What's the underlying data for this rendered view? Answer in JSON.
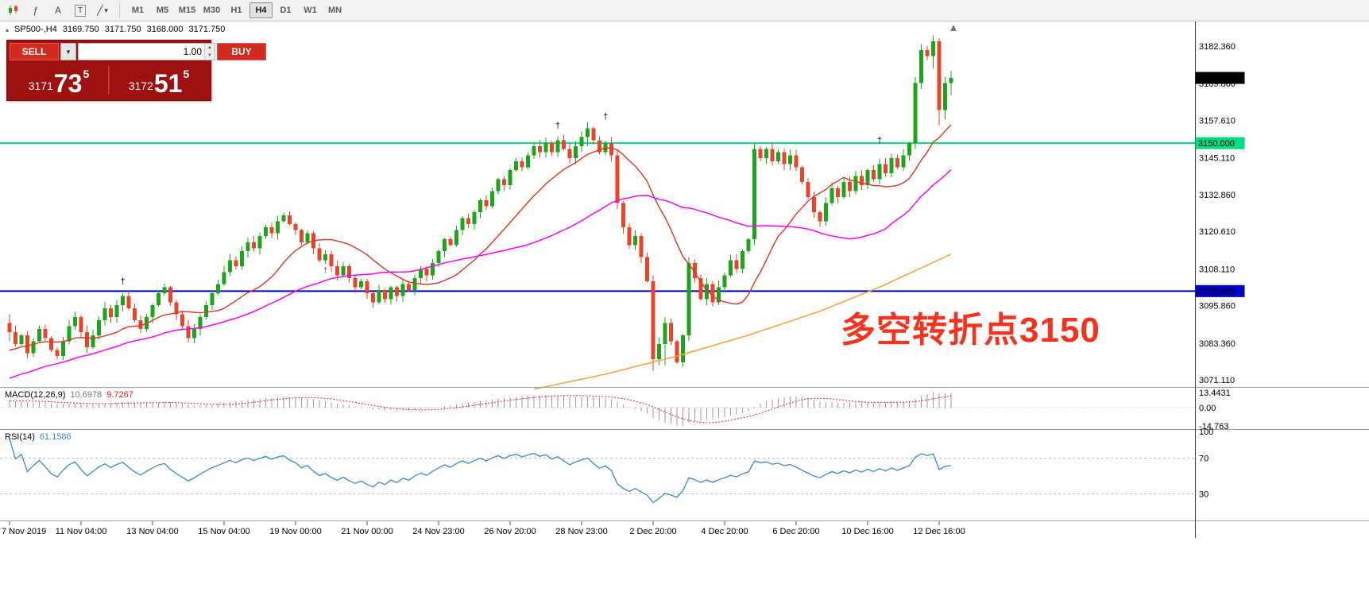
{
  "toolbar": {
    "icons": [
      {
        "name": "candlestick-chart-icon",
        "glyph": ""
      },
      {
        "name": "indicators-icon",
        "glyph": "ƒ"
      },
      {
        "name": "text-label-icon",
        "glyph": "A"
      },
      {
        "name": "text-box-icon",
        "glyph": "T"
      },
      {
        "name": "drawing-tools-icon",
        "glyph": "╱"
      },
      {
        "name": "dropdown-caret",
        "glyph": "▾"
      }
    ],
    "timeframes": [
      "M1",
      "M5",
      "M15",
      "M30",
      "H1",
      "H4",
      "D1",
      "W1",
      "MN"
    ],
    "active_timeframe": "H4"
  },
  "chart_header": {
    "icon": "▴",
    "symbol": "SP500-,H4",
    "open": "3169.750",
    "high": "3171.750",
    "low": "3168.000",
    "close": "3171.750"
  },
  "trade_panel": {
    "sell_label": "SELL",
    "buy_label": "BUY",
    "volume": "1.00",
    "dropdown_glyph": "▼",
    "spinner_up": "▲",
    "spinner_down": "▼",
    "sell_price": {
      "small": "3171",
      "big": "73",
      "sup": "5"
    },
    "buy_price": {
      "small": "3172",
      "big": "51",
      "sup": "5"
    }
  },
  "annotation": {
    "text": "多空转折点3150",
    "color": "#F5321C"
  },
  "price_axis_labels": [
    "3182.360",
    "3169.860",
    "3157.610",
    "3145.110",
    "3132.860",
    "3120.610",
    "3108.110",
    "3095.860",
    "3083.360",
    "3071.110"
  ],
  "price_tags": [
    {
      "text": "3171.750",
      "price": 3171.75,
      "bg": "#000000",
      "fg": "#ffffff"
    },
    {
      "text": "3150.000",
      "price": 3150.0,
      "bg": "#00DC81",
      "fg": "#003318"
    },
    {
      "text": "3100.685",
      "price": 3100.685,
      "bg": "#0000C8",
      "fg": "#ffffff"
    }
  ],
  "hlines": [
    {
      "price": 3150.0,
      "color": "#00DC81",
      "width": 2
    },
    {
      "price": 3100.685,
      "color": "#0000C8",
      "width": 2
    }
  ],
  "time_axis": {
    "labels": [
      {
        "text": "7 Nov 2019",
        "bar": 0
      },
      {
        "text": "11 Nov 04:00",
        "bar": 12
      },
      {
        "text": "13 Nov 04:00",
        "bar": 24
      },
      {
        "text": "15 Nov 04:00",
        "bar": 36
      },
      {
        "text": "19 Nov 00:00",
        "bar": 48
      },
      {
        "text": "21 Nov 00:00",
        "bar": 60
      },
      {
        "text": "24 Nov 23:00",
        "bar": 72
      },
      {
        "text": "26 Nov 20:00",
        "bar": 84
      },
      {
        "text": "28 Nov 23:00",
        "bar": 96
      },
      {
        "text": "2 Dec 20:00",
        "bar": 108
      },
      {
        "text": "4 Dec 20:00",
        "bar": 120
      },
      {
        "text": "6 Dec 20:00",
        "bar": 132
      },
      {
        "text": "10 Dec 16:00",
        "bar": 144
      },
      {
        "text": "12 Dec 16:00",
        "bar": 156
      }
    ]
  },
  "indicators": {
    "macd": {
      "label": "MACD(12,26,9)",
      "value1": "10.6978",
      "value2": "9.7267",
      "axis": [
        "13.4431",
        "0.00",
        "-14.763"
      ]
    },
    "rsi": {
      "label": "RSI(14)",
      "value": "61.1586",
      "axis": [
        "100",
        "70",
        "30"
      ],
      "levels": [
        70,
        30
      ]
    }
  },
  "markers": [
    {
      "bar": 19,
      "price": 3103,
      "glyph": "†"
    },
    {
      "bar": 53,
      "price": 3107,
      "glyph": "↑"
    },
    {
      "bar": 92,
      "price": 3155,
      "glyph": "†"
    },
    {
      "bar": 100,
      "price": 3158,
      "glyph": "†"
    },
    {
      "bar": 146,
      "price": 3150,
      "glyph": "†"
    }
  ],
  "chart_data": {
    "type": "candlestick",
    "symbol": "SP500-",
    "timeframe": "H4",
    "y_range": [
      3066,
      3190
    ],
    "colors": {
      "up": "#1CA41C",
      "down": "#E8432B",
      "ma_fast": "#E03224",
      "ma_mid": "#FF00FF",
      "ma_slow": "#F6A63B",
      "macd_hist": "#9a9a9a",
      "macd_signal": "#D22B20",
      "rsi": "#3E86C6"
    },
    "overlays": {
      "ma_fast_period": 16,
      "ma_mid_period": 40,
      "ma_slow_points": [
        [
          88,
          3068
        ],
        [
          100,
          3073
        ],
        [
          112,
          3079
        ],
        [
          124,
          3086
        ],
        [
          136,
          3094
        ],
        [
          146,
          3102
        ],
        [
          158,
          3113
        ]
      ]
    },
    "candles": [
      [
        3090,
        3093,
        3084,
        3087
      ],
      3083,
      3086,
      3080,
      3084,
      3088,
      3085,
      3081,
      3079,
      3084,
      3089,
      3092,
      3087,
      3082,
      3086,
      3091,
      3095,
      3092,
      3096,
      3099,
      3095,
      3091,
      3088,
      3092,
      3096,
      3100,
      3102,
      3097,
      3093,
      3089,
      3085,
      3088,
      3092,
      3096,
      3100,
      3103,
      3107,
      3111,
      3109,
      3114,
      3117,
      3115,
      3119,
      3122,
      3120,
      3124,
      3126,
      3123,
      3121,
      3117,
      3120,
      3115,
      3111,
      3113,
      3109,
      3106,
      3109,
      3105,
      3102,
      3104,
      3100,
      3097,
      3101,
      3098,
      3102,
      3099,
      3103,
      3101,
      3105,
      3108,
      3106,
      3110,
      3114,
      3118,
      3116,
      3121,
      3125,
      3123,
      3127,
      3131,
      3129,
      3134,
      3138,
      3136,
      3141,
      3144,
      3142,
      3146,
      3149,
      3147,
      3150,
      3147,
      3151,
      3148,
      3145,
      3149,
      3152,
      [
        3152,
        3157,
        3149,
        3155
      ],
      3151,
      3147,
      3150,
      3146,
      [
        3146,
        3148,
        3128,
        3130
      ],
      3122,
      3116,
      3119,
      3112,
      3104,
      [
        3104,
        3106,
        3074,
        3078
      ],
      3083,
      [
        3083,
        3092,
        3076,
        3090
      ],
      3084,
      3077,
      3086,
      [
        3086,
        3112,
        3084,
        3110
      ],
      3105,
      3098,
      3103,
      3097,
      3102,
      3106,
      3111,
      3108,
      3114,
      3118,
      [
        3118,
        3150,
        3116,
        3148
      ],
      3145,
      3148,
      3144,
      3147,
      3143,
      3146,
      3142,
      3137,
      3132,
      3127,
      3124,
      3130,
      3135,
      3132,
      3137,
      3134,
      3139,
      3136,
      3141,
      3138,
      3143,
      3140,
      3145,
      3142,
      3146,
      3150,
      [
        3150,
        3172,
        3148,
        3170
      ],
      [
        3170,
        3183,
        3168,
        3181
      ],
      3179,
      [
        3179,
        3186,
        3175,
        3184
      ],
      [
        3184,
        3185,
        3156,
        3161
      ],
      [
        3161,
        3172,
        3158,
        3170
      ],
      [
        3170,
        3174,
        3166,
        3171.75
      ]
    ]
  }
}
